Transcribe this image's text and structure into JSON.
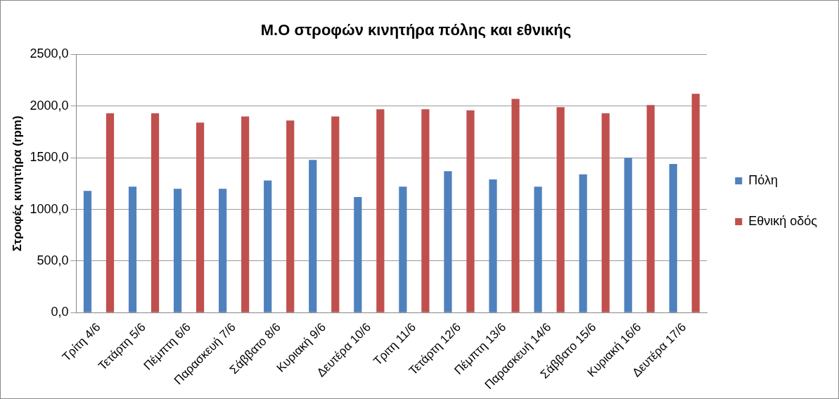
{
  "chart_data": {
    "type": "bar",
    "title": "Μ.Ο στροφών κινητήρα πόλης και εθνικής",
    "ylabel": "Στροφές κινητήρα (rpm)",
    "categories": [
      "Τρίτη 4/6",
      "Τετάρτη 5/6",
      "Πέμπτη 6/6",
      "Παρασκευή 7/6",
      "Σάββατο 8/6",
      "Κυριακή 9/6",
      "Δευτέρα 10/6",
      "Τριτη 11/6",
      "Τετάρτη 12/6",
      "Πέμπτη 13/6",
      "Παρασκευή 14/6",
      "Σάββατο 15/6",
      "Κυριακή 16/6",
      "Δευτέρα 17/6"
    ],
    "series": [
      {
        "name": "Πόλη",
        "color": "#4f81bd",
        "values": [
          1180,
          1220,
          1200,
          1200,
          1280,
          1480,
          1120,
          1220,
          1370,
          1290,
          1220,
          1340,
          1500,
          1440
        ]
      },
      {
        "name": "Εθνική οδός",
        "color": "#c0504d",
        "values": [
          1930,
          1930,
          1840,
          1900,
          1860,
          1900,
          1970,
          1970,
          1960,
          2070,
          1990,
          1930,
          2010,
          2120
        ]
      }
    ],
    "ylim": [
      0,
      2500
    ],
    "yticks": [
      {
        "value": 0,
        "label": "0,0"
      },
      {
        "value": 500,
        "label": "500,0"
      },
      {
        "value": 1000,
        "label": "1000,0"
      },
      {
        "value": 1500,
        "label": "1500,0"
      },
      {
        "value": 2000,
        "label": "2000,0"
      },
      {
        "value": 2500,
        "label": "2500,0"
      }
    ],
    "grid": "y",
    "legend": "right"
  }
}
